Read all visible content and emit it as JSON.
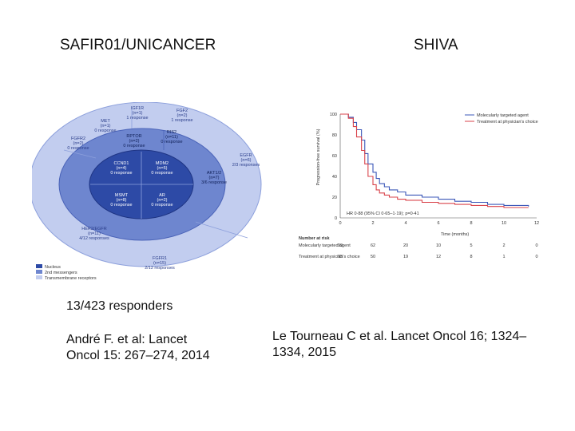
{
  "titles": {
    "left": "SAFIR01/UNICANCER",
    "right": "SHIVA"
  },
  "responders": "13/423 responders",
  "citations": {
    "left": [
      "André F. et al: Lancet",
      "Oncol 15: 267–274, 2014"
    ],
    "right": [
      "Le Tourneau C et al. Lancet Oncol 16; 1324–",
      "1334, 2015"
    ]
  },
  "left_figure": {
    "outer_ring": [
      {
        "name": "IGF1R",
        "n": "(n=1)",
        "resp": "1 response"
      },
      {
        "name": "FGF2",
        "n": "(n=2)",
        "resp": "1 response"
      },
      {
        "name": "MET",
        "n": "(n=1)",
        "resp": "0 response"
      },
      {
        "name": "FGFR2",
        "n": "(n=2)",
        "resp": "0 response"
      },
      {
        "name": "EGFR",
        "n": "(n=6)",
        "resp": "2/3 responses"
      },
      {
        "name": "HER2/EGFR",
        "n": "(n=11)",
        "resp": "4/12 responses"
      },
      {
        "name": "FGFR1",
        "n": "(n=15)",
        "resp": "2/12 responses"
      }
    ],
    "middle_ring": [
      {
        "name": "RPTOR",
        "n": "(n=2)",
        "resp": "0 response"
      },
      {
        "name": "RIS2",
        "n": "(n=11)",
        "resp": "0 response"
      },
      {
        "name": "AKT1/2",
        "n": "(n=7)",
        "resp": "3/6 response"
      }
    ],
    "core": [
      {
        "name": "CCND1",
        "n": "(n=4)",
        "resp": "0 response"
      },
      {
        "name": "MDM2",
        "n": "(n=5)",
        "resp": "0 response"
      },
      {
        "name": "MSMT",
        "n": "(n=8)",
        "resp": "0 response"
      },
      {
        "name": "AR",
        "n": "(n=2)",
        "resp": "0 response"
      }
    ],
    "legend": [
      "Nucleus",
      "2nd messengers",
      "Transmembrane receptors"
    ],
    "legend_colors": [
      "#2d4aa6",
      "#6e86cf",
      "#c2cdef"
    ]
  },
  "chart_data": {
    "type": "line",
    "ylabel": "Progression-free survival (%)",
    "xlabel": "Time (months)",
    "xlim": [
      0,
      12
    ],
    "ylim": [
      0,
      100
    ],
    "x_ticks": [
      "0",
      "2",
      "4",
      "6",
      "8",
      "10",
      "12"
    ],
    "y_ticks": [
      "0",
      "20",
      "40",
      "60",
      "80",
      "100"
    ],
    "legend_placement": "top-right",
    "series": [
      {
        "name": "Molecularly targeted agent",
        "color": "#3b57b8",
        "x": [
          0,
          0.5,
          0.8,
          1.0,
          1.3,
          1.5,
          1.7,
          2.0,
          2.2,
          2.4,
          2.7,
          3.0,
          3.5,
          4.0,
          5.0,
          6.0,
          7.0,
          8.0,
          9.0,
          10.0,
          11.5
        ],
        "y": [
          100,
          97,
          92,
          85,
          75,
          62,
          52,
          44,
          38,
          33,
          30,
          27,
          25,
          22,
          20,
          18,
          16,
          15,
          13,
          12,
          11
        ]
      },
      {
        "name": "Treatment at physician's choice",
        "color": "#d9434b",
        "x": [
          0,
          0.5,
          0.8,
          1.0,
          1.3,
          1.5,
          1.7,
          2.0,
          2.2,
          2.4,
          2.7,
          3.0,
          3.5,
          4.0,
          5.0,
          6.0,
          7.0,
          8.0,
          9.0,
          10.0,
          11.5
        ],
        "y": [
          100,
          96,
          88,
          78,
          65,
          52,
          40,
          32,
          27,
          24,
          22,
          20,
          18,
          17,
          15,
          14,
          13,
          12,
          11,
          10,
          10
        ]
      }
    ],
    "annotation": "HR 0·88 (95% CI 0·65–1·19); p=0·41",
    "at_risk": {
      "label": "Number at risk",
      "rows": [
        {
          "label": "Molecularly targeted agent",
          "values": [
            "99",
            "62",
            "20",
            "10",
            "5",
            "2",
            "0"
          ]
        },
        {
          "label": "Treatment at physician's choice",
          "values": [
            "95",
            "50",
            "19",
            "12",
            "8",
            "1",
            "0"
          ]
        }
      ]
    }
  }
}
